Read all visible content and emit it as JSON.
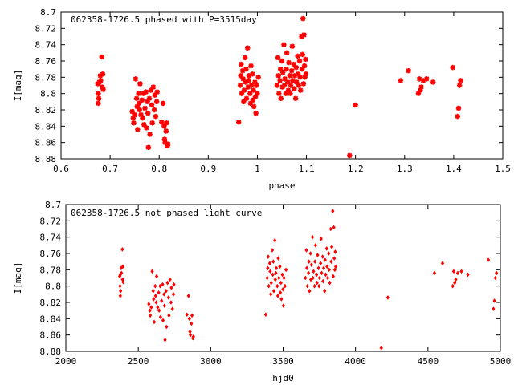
{
  "chart_data": [
    {
      "type": "scatter",
      "title": "062358-1726.5 phased with P=3515day",
      "xlabel": "phase",
      "ylabel": "I[mag]",
      "xlim": [
        0.6,
        1.5
      ],
      "ylim": [
        8.88,
        8.7
      ],
      "y_inverted": true,
      "x_ticks": [
        "0.6",
        "0.7",
        "0.8",
        "0.9",
        "1",
        "1.1",
        "1.2",
        "1.3",
        "1.4",
        "1.5"
      ],
      "y_ticks": [
        "8.7",
        "8.72",
        "8.74",
        "8.76",
        "8.78",
        "8.8",
        "8.82",
        "8.84",
        "8.86",
        "8.88"
      ],
      "marker": "star",
      "color": "#ff0000",
      "points": [
        [
          0.675,
          8.788
        ],
        [
          0.676,
          8.8
        ],
        [
          0.678,
          8.786
        ],
        [
          0.677,
          8.806
        ],
        [
          0.676,
          8.812
        ],
        [
          0.68,
          8.778
        ],
        [
          0.681,
          8.784
        ],
        [
          0.683,
          8.755
        ],
        [
          0.684,
          8.792
        ],
        [
          0.686,
          8.795
        ],
        [
          0.685,
          8.776
        ],
        [
          0.745,
          8.822
        ],
        [
          0.747,
          8.83
        ],
        [
          0.748,
          8.836
        ],
        [
          0.75,
          8.826
        ],
        [
          0.752,
          8.782
        ],
        [
          0.754,
          8.806
        ],
        [
          0.755,
          8.816
        ],
        [
          0.756,
          8.844
        ],
        [
          0.758,
          8.8
        ],
        [
          0.759,
          8.812
        ],
        [
          0.76,
          8.82
        ],
        [
          0.761,
          8.788
        ],
        [
          0.763,
          8.826
        ],
        [
          0.765,
          8.808
        ],
        [
          0.766,
          8.83
        ],
        [
          0.768,
          8.8
        ],
        [
          0.769,
          8.838
        ],
        [
          0.771,
          8.818
        ],
        [
          0.773,
          8.798
        ],
        [
          0.774,
          8.842
        ],
        [
          0.776,
          8.81
        ],
        [
          0.777,
          8.824
        ],
        [
          0.778,
          8.866
        ],
        [
          0.78,
          8.806
        ],
        [
          0.781,
          8.85
        ],
        [
          0.783,
          8.796
        ],
        [
          0.785,
          8.814
        ],
        [
          0.786,
          8.836
        ],
        [
          0.788,
          8.792
        ],
        [
          0.79,
          8.82
        ],
        [
          0.791,
          8.802
        ],
        [
          0.793,
          8.828
        ],
        [
          0.795,
          8.81
        ],
        [
          0.796,
          8.798
        ],
        [
          0.805,
          8.835
        ],
        [
          0.808,
          8.812
        ],
        [
          0.81,
          8.84
        ],
        [
          0.811,
          8.856
        ],
        [
          0.812,
          8.86
        ],
        [
          0.814,
          8.846
        ],
        [
          0.815,
          8.836
        ],
        [
          0.817,
          8.864
        ],
        [
          0.818,
          8.862
        ],
        [
          0.962,
          8.835
        ],
        [
          0.965,
          8.79
        ],
        [
          0.966,
          8.778
        ],
        [
          0.967,
          8.764
        ],
        [
          0.968,
          8.8
        ],
        [
          0.97,
          8.772
        ],
        [
          0.971,
          8.782
        ],
        [
          0.972,
          8.81
        ],
        [
          0.973,
          8.796
        ],
        [
          0.975,
          8.756
        ],
        [
          0.976,
          8.786
        ],
        [
          0.977,
          8.77
        ],
        [
          0.978,
          8.806
        ],
        [
          0.98,
          8.744
        ],
        [
          0.981,
          8.792
        ],
        [
          0.982,
          8.784
        ],
        [
          0.983,
          8.778
        ],
        [
          0.985,
          8.8
        ],
        [
          0.986,
          8.812
        ],
        [
          0.987,
          8.766
        ],
        [
          0.988,
          8.79
        ],
        [
          0.99,
          8.776
        ],
        [
          0.991,
          8.808
        ],
        [
          0.992,
          8.796
        ],
        [
          0.993,
          8.816
        ],
        [
          0.995,
          8.786
        ],
        [
          0.996,
          8.804
        ],
        [
          0.997,
          8.824
        ],
        [
          0.998,
          8.79
        ],
        [
          1.0,
          8.8
        ],
        [
          1.002,
          8.78
        ],
        [
          1.04,
          8.79
        ],
        [
          1.042,
          8.756
        ],
        [
          1.043,
          8.778
        ],
        [
          1.044,
          8.8
        ],
        [
          1.046,
          8.784
        ],
        [
          1.047,
          8.77
        ],
        [
          1.048,
          8.806
        ],
        [
          1.05,
          8.76
        ],
        [
          1.051,
          8.792
        ],
        [
          1.052,
          8.774
        ],
        [
          1.054,
          8.74
        ],
        [
          1.055,
          8.79
        ],
        [
          1.056,
          8.782
        ],
        [
          1.058,
          8.8
        ],
        [
          1.059,
          8.77
        ],
        [
          1.06,
          8.75
        ],
        [
          1.062,
          8.786
        ],
        [
          1.063,
          8.796
        ],
        [
          1.064,
          8.762
        ],
        [
          1.066,
          8.778
        ],
        [
          1.067,
          8.8
        ],
        [
          1.068,
          8.79
        ],
        [
          1.07,
          8.772
        ],
        [
          1.071,
          8.742
        ],
        [
          1.072,
          8.784
        ],
        [
          1.074,
          8.764
        ],
        [
          1.075,
          8.794
        ],
        [
          1.076,
          8.778
        ],
        [
          1.078,
          8.806
        ],
        [
          1.079,
          8.768
        ],
        [
          1.08,
          8.786
        ],
        [
          1.082,
          8.754
        ],
        [
          1.083,
          8.776
        ],
        [
          1.084,
          8.79
        ],
        [
          1.086,
          8.76
        ],
        [
          1.087,
          8.78
        ],
        [
          1.088,
          8.796
        ],
        [
          1.09,
          8.73
        ],
        [
          1.091,
          8.77
        ],
        [
          1.092,
          8.752
        ],
        [
          1.093,
          8.708
        ],
        [
          1.094,
          8.788
        ],
        [
          1.095,
          8.728
        ],
        [
          1.096,
          8.766
        ],
        [
          1.097,
          8.78
        ],
        [
          1.098,
          8.758
        ],
        [
          1.099,
          8.776
        ],
        [
          1.188,
          8.876
        ],
        [
          1.2,
          8.814
        ],
        [
          1.292,
          8.784
        ],
        [
          1.308,
          8.772
        ],
        [
          1.328,
          8.8
        ],
        [
          1.33,
          8.782
        ],
        [
          1.332,
          8.796
        ],
        [
          1.334,
          8.792
        ],
        [
          1.338,
          8.784
        ],
        [
          1.345,
          8.782
        ],
        [
          1.358,
          8.786
        ],
        [
          1.398,
          8.768
        ],
        [
          1.408,
          8.828
        ],
        [
          1.41,
          8.818
        ],
        [
          1.412,
          8.79
        ],
        [
          1.414,
          8.784
        ]
      ]
    },
    {
      "type": "scatter",
      "title": "062358-1726.5 not phased light curve",
      "xlabel": "hjd0",
      "ylabel": "I[mag]",
      "xlim": [
        2000,
        5000
      ],
      "ylim": [
        8.88,
        8.7
      ],
      "y_inverted": true,
      "x_ticks": [
        "2000",
        "2500",
        "3000",
        "3500",
        "4000",
        "4500",
        "5000"
      ],
      "y_ticks": [
        "8.7",
        "8.72",
        "8.74",
        "8.76",
        "8.78",
        "8.8",
        "8.82",
        "8.84",
        "8.86",
        "8.88"
      ],
      "marker": "diamond",
      "color": "#ff0000",
      "points": [
        [
          2372,
          8.788
        ],
        [
          2374,
          8.8
        ],
        [
          2376,
          8.786
        ],
        [
          2378,
          8.806
        ],
        [
          2376,
          8.812
        ],
        [
          2382,
          8.778
        ],
        [
          2384,
          8.784
        ],
        [
          2390,
          8.755
        ],
        [
          2392,
          8.792
        ],
        [
          2396,
          8.795
        ],
        [
          2394,
          8.776
        ],
        [
          2573,
          8.822
        ],
        [
          2580,
          8.83
        ],
        [
          2583,
          8.836
        ],
        [
          2590,
          8.826
        ],
        [
          2596,
          8.782
        ],
        [
          2603,
          8.806
        ],
        [
          2606,
          8.816
        ],
        [
          2610,
          8.844
        ],
        [
          2617,
          8.8
        ],
        [
          2620,
          8.812
        ],
        [
          2624,
          8.82
        ],
        [
          2627,
          8.788
        ],
        [
          2634,
          8.826
        ],
        [
          2641,
          8.808
        ],
        [
          2644,
          8.83
        ],
        [
          2651,
          8.8
        ],
        [
          2654,
          8.838
        ],
        [
          2661,
          8.818
        ],
        [
          2668,
          8.798
        ],
        [
          2671,
          8.842
        ],
        [
          2678,
          8.81
        ],
        [
          2681,
          8.824
        ],
        [
          2685,
          8.866
        ],
        [
          2692,
          8.806
        ],
        [
          2695,
          8.85
        ],
        [
          2702,
          8.796
        ],
        [
          2709,
          8.814
        ],
        [
          2712,
          8.836
        ],
        [
          2719,
          8.792
        ],
        [
          2726,
          8.82
        ],
        [
          2729,
          8.802
        ],
        [
          2736,
          8.828
        ],
        [
          2743,
          8.81
        ],
        [
          2746,
          8.798
        ],
        [
          2836,
          8.835
        ],
        [
          2847,
          8.812
        ],
        [
          2853,
          8.84
        ],
        [
          2857,
          8.856
        ],
        [
          2860,
          8.86
        ],
        [
          2867,
          8.846
        ],
        [
          2871,
          8.836
        ],
        [
          2877,
          8.864
        ],
        [
          2881,
          8.862
        ],
        [
          3380,
          8.835
        ],
        [
          3390,
          8.79
        ],
        [
          3394,
          8.778
        ],
        [
          3397,
          8.764
        ],
        [
          3401,
          8.8
        ],
        [
          3408,
          8.772
        ],
        [
          3411,
          8.782
        ],
        [
          3415,
          8.81
        ],
        [
          3418,
          8.796
        ],
        [
          3425,
          8.756
        ],
        [
          3429,
          8.786
        ],
        [
          3432,
          8.77
        ],
        [
          3436,
          8.806
        ],
        [
          3443,
          8.744
        ],
        [
          3446,
          8.792
        ],
        [
          3450,
          8.784
        ],
        [
          3453,
          8.778
        ],
        [
          3460,
          8.8
        ],
        [
          3464,
          8.812
        ],
        [
          3467,
          8.766
        ],
        [
          3471,
          8.79
        ],
        [
          3478,
          8.776
        ],
        [
          3481,
          8.808
        ],
        [
          3485,
          8.796
        ],
        [
          3488,
          8.816
        ],
        [
          3495,
          8.786
        ],
        [
          3499,
          8.804
        ],
        [
          3502,
          8.824
        ],
        [
          3506,
          8.79
        ],
        [
          3513,
          8.8
        ],
        [
          3520,
          8.78
        ],
        [
          3654,
          8.79
        ],
        [
          3661,
          8.756
        ],
        [
          3664,
          8.778
        ],
        [
          3668,
          8.8
        ],
        [
          3675,
          8.784
        ],
        [
          3678,
          8.77
        ],
        [
          3682,
          8.806
        ],
        [
          3689,
          8.76
        ],
        [
          3692,
          8.792
        ],
        [
          3696,
          8.774
        ],
        [
          3703,
          8.74
        ],
        [
          3706,
          8.79
        ],
        [
          3710,
          8.782
        ],
        [
          3717,
          8.8
        ],
        [
          3720,
          8.77
        ],
        [
          3724,
          8.75
        ],
        [
          3731,
          8.786
        ],
        [
          3734,
          8.796
        ],
        [
          3738,
          8.762
        ],
        [
          3745,
          8.778
        ],
        [
          3748,
          8.8
        ],
        [
          3752,
          8.79
        ],
        [
          3759,
          8.772
        ],
        [
          3762,
          8.742
        ],
        [
          3766,
          8.784
        ],
        [
          3773,
          8.764
        ],
        [
          3776,
          8.794
        ],
        [
          3780,
          8.778
        ],
        [
          3787,
          8.806
        ],
        [
          3790,
          8.768
        ],
        [
          3794,
          8.786
        ],
        [
          3801,
          8.754
        ],
        [
          3804,
          8.776
        ],
        [
          3808,
          8.79
        ],
        [
          3815,
          8.76
        ],
        [
          3818,
          8.78
        ],
        [
          3822,
          8.796
        ],
        [
          3829,
          8.73
        ],
        [
          3832,
          8.77
        ],
        [
          3836,
          8.752
        ],
        [
          3843,
          8.708
        ],
        [
          3846,
          8.788
        ],
        [
          3850,
          8.728
        ],
        [
          3853,
          8.766
        ],
        [
          3857,
          8.78
        ],
        [
          3860,
          8.758
        ],
        [
          3864,
          8.776
        ],
        [
          4178,
          8.876
        ],
        [
          4223,
          8.814
        ],
        [
          4545,
          8.784
        ],
        [
          4601,
          8.772
        ],
        [
          4671,
          8.8
        ],
        [
          4678,
          8.782
        ],
        [
          4685,
          8.796
        ],
        [
          4692,
          8.792
        ],
        [
          4706,
          8.784
        ],
        [
          4731,
          8.782
        ],
        [
          4776,
          8.786
        ],
        [
          4917,
          8.768
        ],
        [
          4952,
          8.828
        ],
        [
          4959,
          8.818
        ],
        [
          4966,
          8.79
        ],
        [
          4973,
          8.784
        ]
      ]
    }
  ]
}
